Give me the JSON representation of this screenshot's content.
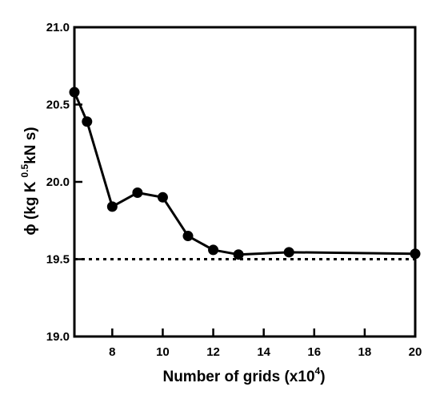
{
  "chart_data": {
    "type": "line",
    "title": "",
    "xlabel": {
      "main": "Number of grids (x10",
      "sup": "4",
      "end": ")"
    },
    "ylabel": {
      "part1": "ϕ (kg K",
      "sup": "0.5",
      "part2": "kN s)"
    },
    "xlim": [
      6.5,
      20
    ],
    "ylim": [
      19.0,
      21.0
    ],
    "x_ticks": [
      8,
      10,
      12,
      14,
      16,
      18,
      20
    ],
    "x_tick_labels": [
      "8",
      "10",
      "12",
      "14",
      "16",
      "18",
      "20"
    ],
    "y_ticks": [
      19.0,
      19.5,
      20.0,
      20.5,
      21.0
    ],
    "y_tick_labels": [
      "19.0",
      "19.5",
      "20.0",
      "20.5",
      "21.0"
    ],
    "grid": false,
    "legend": "none",
    "series": [
      {
        "x": [
          6.5,
          7,
          8,
          9,
          10,
          11,
          12,
          13,
          15,
          20
        ],
        "y": [
          20.58,
          20.39,
          19.84,
          19.93,
          19.9,
          19.65,
          19.56,
          19.53,
          19.545,
          19.535
        ],
        "style": "solid",
        "marker": "circle",
        "color": "#000000"
      }
    ],
    "reference_line": {
      "y": 19.5,
      "style": "dotted",
      "color": "#000000"
    }
  }
}
